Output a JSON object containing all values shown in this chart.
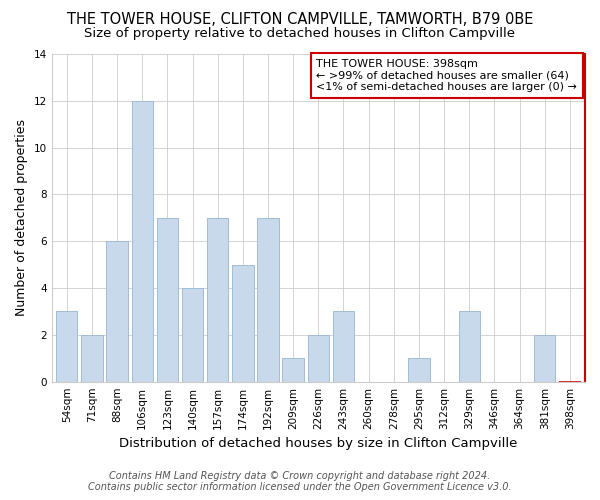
{
  "title": "THE TOWER HOUSE, CLIFTON CAMPVILLE, TAMWORTH, B79 0BE",
  "subtitle": "Size of property relative to detached houses in Clifton Campville",
  "xlabel": "Distribution of detached houses by size in Clifton Campville",
  "ylabel": "Number of detached properties",
  "bar_labels": [
    "54sqm",
    "71sqm",
    "88sqm",
    "106sqm",
    "123sqm",
    "140sqm",
    "157sqm",
    "174sqm",
    "192sqm",
    "209sqm",
    "226sqm",
    "243sqm",
    "260sqm",
    "278sqm",
    "295sqm",
    "312sqm",
    "329sqm",
    "346sqm",
    "364sqm",
    "381sqm",
    "398sqm"
  ],
  "bar_values": [
    3,
    2,
    6,
    12,
    7,
    4,
    7,
    5,
    7,
    1,
    2,
    3,
    0,
    0,
    1,
    0,
    3,
    0,
    0,
    2,
    0
  ],
  "bar_color": "#c8d9eb",
  "bar_edge_color": "#a0bcd4",
  "highlight_index": 20,
  "highlight_edge_color": "#cc0000",
  "annotation_title": "THE TOWER HOUSE: 398sqm",
  "annotation_line1": "← >99% of detached houses are smaller (64)",
  "annotation_line2": "<1% of semi-detached houses are larger (0) →",
  "annotation_box_edge": "#cc0000",
  "ylim": [
    0,
    14
  ],
  "yticks": [
    0,
    2,
    4,
    6,
    8,
    10,
    12,
    14
  ],
  "footer_line1": "Contains HM Land Registry data © Crown copyright and database right 2024.",
  "footer_line2": "Contains public sector information licensed under the Open Government Licence v3.0.",
  "title_fontsize": 10.5,
  "subtitle_fontsize": 9.5,
  "xlabel_fontsize": 9.5,
  "ylabel_fontsize": 9,
  "tick_fontsize": 7.5,
  "ann_fontsize": 8,
  "footer_fontsize": 7
}
